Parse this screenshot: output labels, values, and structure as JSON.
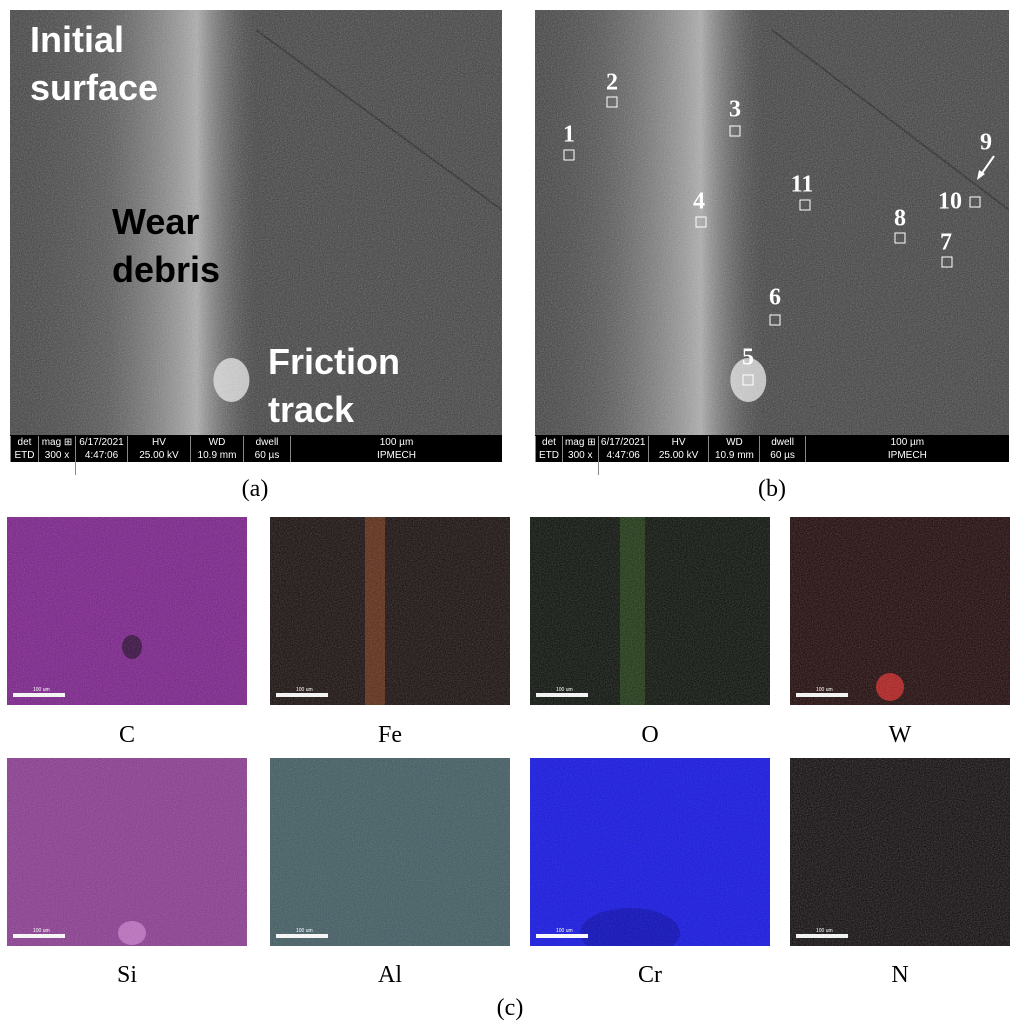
{
  "panel_a": {
    "annotations": [
      [
        "Initial",
        "surface"
      ],
      [
        "Wear",
        "debris"
      ],
      [
        "Friction",
        "track"
      ]
    ],
    "info_bar": {
      "headers": [
        "det",
        "mag ⊞",
        "6/17/2021",
        "HV",
        "WD",
        "dwell",
        "100 µm"
      ],
      "values": [
        "ETD",
        "300 x",
        "4:47:06 PM",
        "25.00 kV",
        "10.9 mm",
        "60 µs",
        "IPMECH"
      ]
    },
    "caption": "(a)"
  },
  "panel_b": {
    "points": [
      "1",
      "2",
      "3",
      "4",
      "5",
      "6",
      "7",
      "8",
      "9",
      "10",
      "11"
    ],
    "info_bar": {
      "headers": [
        "det",
        "mag ⊞",
        "6/17/2021",
        "HV",
        "WD",
        "dwell",
        "100 µm"
      ],
      "values": [
        "ETD",
        "300 x",
        "4:47:06 PM",
        "25.00 kV",
        "10.9 mm",
        "60 µs",
        "IPMECH"
      ]
    },
    "caption": "(b)"
  },
  "panel_c": {
    "maps": [
      {
        "element": "C",
        "scale_label": "100 um"
      },
      {
        "element": "Fe",
        "scale_label": "100 um"
      },
      {
        "element": "O",
        "scale_label": "100 um"
      },
      {
        "element": "W",
        "scale_label": "100 um"
      },
      {
        "element": "Si",
        "scale_label": "100 um"
      },
      {
        "element": "Al",
        "scale_label": "100 um"
      },
      {
        "element": "Cr",
        "scale_label": "100 um"
      },
      {
        "element": "N",
        "scale_label": "100 um"
      }
    ],
    "caption": "(c)"
  }
}
